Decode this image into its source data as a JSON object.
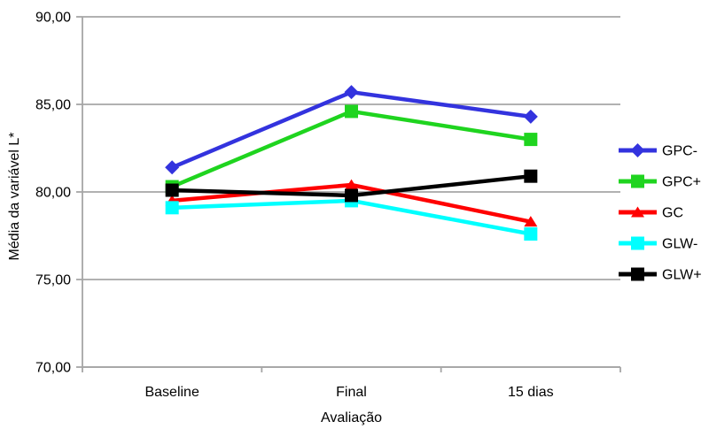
{
  "chart_data": {
    "type": "line",
    "title": "",
    "xlabel": "Avaliação",
    "ylabel": "Média da variável L*",
    "categories": [
      "Baseline",
      "Final",
      "15 dias"
    ],
    "series": [
      {
        "name": "GPC-",
        "color": "#3333DE",
        "marker": "diamond",
        "values": [
          81.4,
          85.7,
          84.3
        ]
      },
      {
        "name": "GPC+",
        "color": "#1FD41F",
        "marker": "square",
        "values": [
          80.3,
          84.6,
          83.0
        ]
      },
      {
        "name": "GC",
        "color": "#FF0000",
        "marker": "triangle",
        "values": [
          79.5,
          80.4,
          78.3
        ]
      },
      {
        "name": "GLW-",
        "color": "#00FFFF",
        "marker": "square",
        "values": [
          79.1,
          79.5,
          77.6
        ]
      },
      {
        "name": "GLW+",
        "color": "#000000",
        "marker": "square",
        "values": [
          80.1,
          79.8,
          80.9
        ]
      }
    ],
    "ylim": [
      70,
      90
    ],
    "ytick_values": [
      70,
      75,
      80,
      85,
      90
    ],
    "ytick_labels": [
      "70,00",
      "75,00",
      "80,00",
      "85,00",
      "90,00"
    ],
    "grid": true,
    "legend_position": "right",
    "axis_color": "#A6A6A6",
    "text_color": "#000000",
    "background_color": "#FFFFFF"
  }
}
